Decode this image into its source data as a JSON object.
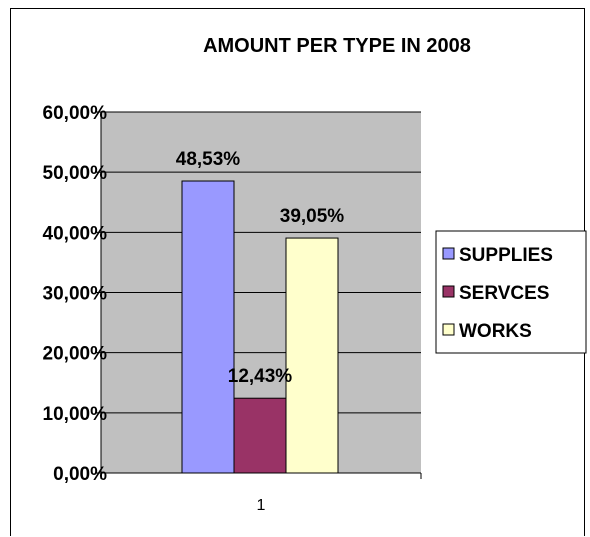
{
  "chart_data": {
    "type": "bar",
    "title": "AMOUNT PER TYPE IN 2008",
    "categories": [
      "1"
    ],
    "series": [
      {
        "name": "SUPPLIES",
        "values": [
          48.53
        ],
        "label": "48,53%",
        "color": "#9999ff"
      },
      {
        "name": "SERVCES",
        "values": [
          12.43
        ],
        "label": "12,43%",
        "color": "#993366"
      },
      {
        "name": "WORKS",
        "values": [
          39.05
        ],
        "label": "39,05%",
        "color": "#ffffcc"
      }
    ],
    "ylim": [
      0,
      60
    ],
    "yticks": [
      0,
      10,
      20,
      30,
      40,
      50,
      60
    ],
    "ytick_labels": [
      "0,00%",
      "10,00%",
      "20,00%",
      "30,00%",
      "40,00%",
      "50,00%",
      "60,00%"
    ],
    "xlabel": "",
    "ylabel": "",
    "grid": true,
    "legend_position": "right",
    "plot_background": "#c0c0c0"
  }
}
